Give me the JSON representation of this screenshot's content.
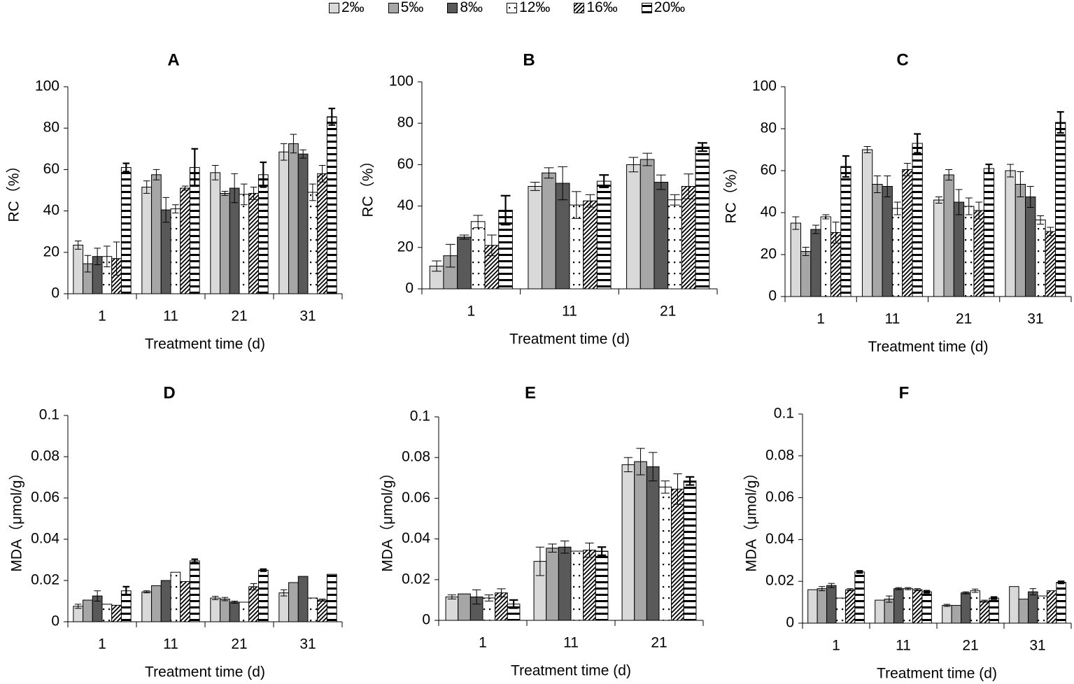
{
  "legend": {
    "items": [
      {
        "label": "2‰",
        "key": "s2"
      },
      {
        "label": "5‰",
        "key": "s5"
      },
      {
        "label": "8‰",
        "key": "s8"
      },
      {
        "label": "12‰",
        "key": "s12"
      },
      {
        "label": "16‰",
        "key": "s16"
      },
      {
        "label": "20‰",
        "key": "s20"
      }
    ]
  },
  "styles": {
    "s2": {
      "fill": "#d9d9d9",
      "pattern": "solid"
    },
    "s5": {
      "fill": "#a6a6a6",
      "pattern": "solid"
    },
    "s8": {
      "fill": "#595959",
      "pattern": "solid"
    },
    "s12": {
      "fill": "#ffffff",
      "pattern": "dots"
    },
    "s16": {
      "fill": "#ffffff",
      "pattern": "diag"
    },
    "s20": {
      "fill": "#ffffff",
      "pattern": "hlines"
    }
  },
  "chart_data": [
    {
      "panel": "A",
      "type": "bar",
      "title": "A",
      "xlabel": "Treatment time (d)",
      "ylabel": "RC（%）",
      "categories": [
        "1",
        "11",
        "21",
        "31"
      ],
      "ylim": [
        0,
        100
      ],
      "yticks": [
        0,
        20,
        40,
        60,
        80,
        100
      ],
      "series": [
        {
          "name": "2‰",
          "values": [
            23.5,
            51.5,
            58.5,
            68.5
          ],
          "errors": [
            2,
            3,
            3.5,
            4
          ]
        },
        {
          "name": "5‰",
          "values": [
            14.5,
            57.5,
            48.5,
            72.5
          ],
          "errors": [
            4,
            2.5,
            1,
            4.5
          ]
        },
        {
          "name": "8‰",
          "values": [
            18,
            40.5,
            51,
            67.5
          ],
          "errors": [
            4,
            6,
            7,
            2
          ]
        },
        {
          "name": "12‰",
          "values": [
            18,
            41,
            48,
            49
          ],
          "errors": [
            5,
            2,
            5,
            4
          ]
        },
        {
          "name": "16‰",
          "values": [
            17,
            51,
            48.5,
            58
          ],
          "errors": [
            8,
            1,
            3,
            4
          ]
        },
        {
          "name": "20‰",
          "values": [
            61,
            61,
            57.5,
            85.5
          ],
          "errors": [
            2,
            9,
            6,
            4
          ]
        }
      ]
    },
    {
      "panel": "B",
      "type": "bar",
      "title": "B",
      "xlabel": "Treatment time (d)",
      "ylabel": "RC（%）",
      "categories": [
        "1",
        "11",
        "21"
      ],
      "ylim": [
        0,
        100
      ],
      "yticks": [
        0,
        20,
        40,
        60,
        80,
        100
      ],
      "series": [
        {
          "name": "2‰",
          "values": [
            11,
            49.5,
            60
          ],
          "errors": [
            2.5,
            2,
            3.5
          ]
        },
        {
          "name": "5‰",
          "values": [
            16,
            56,
            62.5
          ],
          "errors": [
            5.5,
            2.5,
            3
          ]
        },
        {
          "name": "8‰",
          "values": [
            25,
            51,
            51.5
          ],
          "errors": [
            1,
            8,
            3.5
          ]
        },
        {
          "name": "12‰",
          "values": [
            32.5,
            40.5,
            43
          ],
          "errors": [
            3,
            6.5,
            2.5
          ]
        },
        {
          "name": "16‰",
          "values": [
            21,
            42.5,
            49.5
          ],
          "errors": [
            5,
            3,
            6
          ]
        },
        {
          "name": "20‰",
          "values": [
            38,
            52,
            68.5
          ],
          "errors": [
            7,
            3,
            2
          ]
        }
      ]
    },
    {
      "panel": "C",
      "type": "bar",
      "title": "C",
      "xlabel": "Treatment time (d)",
      "ylabel": "RC（%）",
      "categories": [
        "1",
        "11",
        "21",
        "31"
      ],
      "ylim": [
        0,
        100
      ],
      "yticks": [
        0,
        20,
        40,
        60,
        80,
        100
      ],
      "series": [
        {
          "name": "2‰",
          "values": [
            35,
            70,
            46,
            60
          ],
          "errors": [
            3,
            1.5,
            1.5,
            3
          ]
        },
        {
          "name": "5‰",
          "values": [
            21.5,
            53.5,
            58,
            53.5
          ],
          "errors": [
            2,
            4,
            2.5,
            6
          ]
        },
        {
          "name": "8‰",
          "values": [
            32,
            52.5,
            45,
            47.5
          ],
          "errors": [
            2,
            5,
            6,
            5
          ]
        },
        {
          "name": "12‰",
          "values": [
            38,
            42,
            43,
            36.5
          ],
          "errors": [
            1,
            3,
            4,
            2
          ]
        },
        {
          "name": "16‰",
          "values": [
            30.5,
            60.5,
            41,
            31
          ],
          "errors": [
            5,
            3,
            4,
            2
          ]
        },
        {
          "name": "20‰",
          "values": [
            62,
            73,
            61,
            83
          ],
          "errors": [
            5,
            4.5,
            2,
            5
          ]
        }
      ]
    },
    {
      "panel": "D",
      "type": "bar",
      "title": "D",
      "xlabel": "Treatment time (d)",
      "ylabel": "MDA（μmol/g）",
      "categories": [
        "1",
        "11",
        "21",
        "31"
      ],
      "ylim": [
        0,
        0.1
      ],
      "yticks": [
        "0",
        "0.02",
        "0.04",
        "0.06",
        "0.08",
        "0.1"
      ],
      "series": [
        {
          "name": "2‰",
          "values": [
            0.0075,
            0.0145,
            0.0115,
            0.014
          ],
          "errors": [
            0.001,
            0.0005,
            0.0008,
            0.0015
          ]
        },
        {
          "name": "5‰",
          "values": [
            0.0105,
            0.0175,
            0.011,
            0.019
          ],
          "errors": [
            0,
            0,
            0.0008,
            0
          ]
        },
        {
          "name": "8‰",
          "values": [
            0.0125,
            0.02,
            0.0095,
            0.022
          ],
          "errors": [
            0.0025,
            0,
            0.0005,
            0
          ]
        },
        {
          "name": "12‰",
          "values": [
            0.0085,
            0.024,
            0.0095,
            0.0115
          ],
          "errors": [
            0,
            0,
            0,
            0
          ]
        },
        {
          "name": "16‰",
          "values": [
            0.008,
            0.0195,
            0.017,
            0.0105
          ],
          "errors": [
            0,
            0,
            0.0015,
            0.0005
          ]
        },
        {
          "name": "20‰",
          "values": [
            0.015,
            0.0295,
            0.025,
            0.023
          ],
          "errors": [
            0.002,
            0.0008,
            0.0005,
            0
          ]
        }
      ]
    },
    {
      "panel": "E",
      "type": "bar",
      "title": "E",
      "xlabel": "Treatment time (d)",
      "ylabel": "MDA（μmol/g）",
      "categories": [
        "1",
        "11",
        "21"
      ],
      "ylim": [
        0,
        0.1
      ],
      "yticks": [
        "0",
        "0.02",
        "0.04",
        "0.06",
        "0.08",
        "0.1"
      ],
      "series": [
        {
          "name": "2‰",
          "values": [
            0.0115,
            0.029,
            0.0765
          ],
          "errors": [
            0.001,
            0.007,
            0.0035
          ]
        },
        {
          "name": "5‰",
          "values": [
            0.013,
            0.0355,
            0.078
          ],
          "errors": [
            0,
            0.002,
            0.0065
          ]
        },
        {
          "name": "8‰",
          "values": [
            0.0115,
            0.036,
            0.0755
          ],
          "errors": [
            0.0035,
            0.003,
            0.007
          ]
        },
        {
          "name": "12‰",
          "values": [
            0.011,
            0.034,
            0.0655
          ],
          "errors": [
            0.0015,
            0,
            0.003
          ]
        },
        {
          "name": "16‰",
          "values": [
            0.0135,
            0.0345,
            0.0645
          ],
          "errors": [
            0.002,
            0.0035,
            0.0075
          ]
        },
        {
          "name": "20‰",
          "values": [
            0.008,
            0.034,
            0.0685
          ],
          "errors": [
            0.002,
            0.002,
            0.002
          ]
        }
      ]
    },
    {
      "panel": "F",
      "type": "bar",
      "title": "F",
      "xlabel": "Treatment time (d)",
      "ylabel": "MDA（μmol/g）",
      "categories": [
        "1",
        "11",
        "21",
        "31"
      ],
      "ylim": [
        0,
        0.1
      ],
      "yticks": [
        "0",
        "0.02",
        "0.04",
        "0.06",
        "0.08",
        "0.1"
      ],
      "series": [
        {
          "name": "2‰",
          "values": [
            0.016,
            0.011,
            0.0085,
            0.0175
          ],
          "errors": [
            0,
            0,
            0.0005,
            0
          ]
        },
        {
          "name": "5‰",
          "values": [
            0.0165,
            0.0115,
            0.0085,
            0.0115
          ],
          "errors": [
            0.001,
            0.0015,
            0,
            0
          ]
        },
        {
          "name": "8‰",
          "values": [
            0.018,
            0.0165,
            0.0145,
            0.015
          ],
          "errors": [
            0.001,
            0.0005,
            0.0005,
            0.0015
          ]
        },
        {
          "name": "12‰",
          "values": [
            0.012,
            0.0165,
            0.0155,
            0.013
          ],
          "errors": [
            0,
            0.0005,
            0.0008,
            0
          ]
        },
        {
          "name": "16‰",
          "values": [
            0.016,
            0.016,
            0.0105,
            0.0155
          ],
          "errors": [
            0.0005,
            0.0005,
            0.0005,
            0
          ]
        },
        {
          "name": "20‰",
          "values": [
            0.0245,
            0.015,
            0.012,
            0.0195
          ],
          "errors": [
            0.0005,
            0.0005,
            0.0005,
            0.0005
          ]
        }
      ]
    }
  ]
}
